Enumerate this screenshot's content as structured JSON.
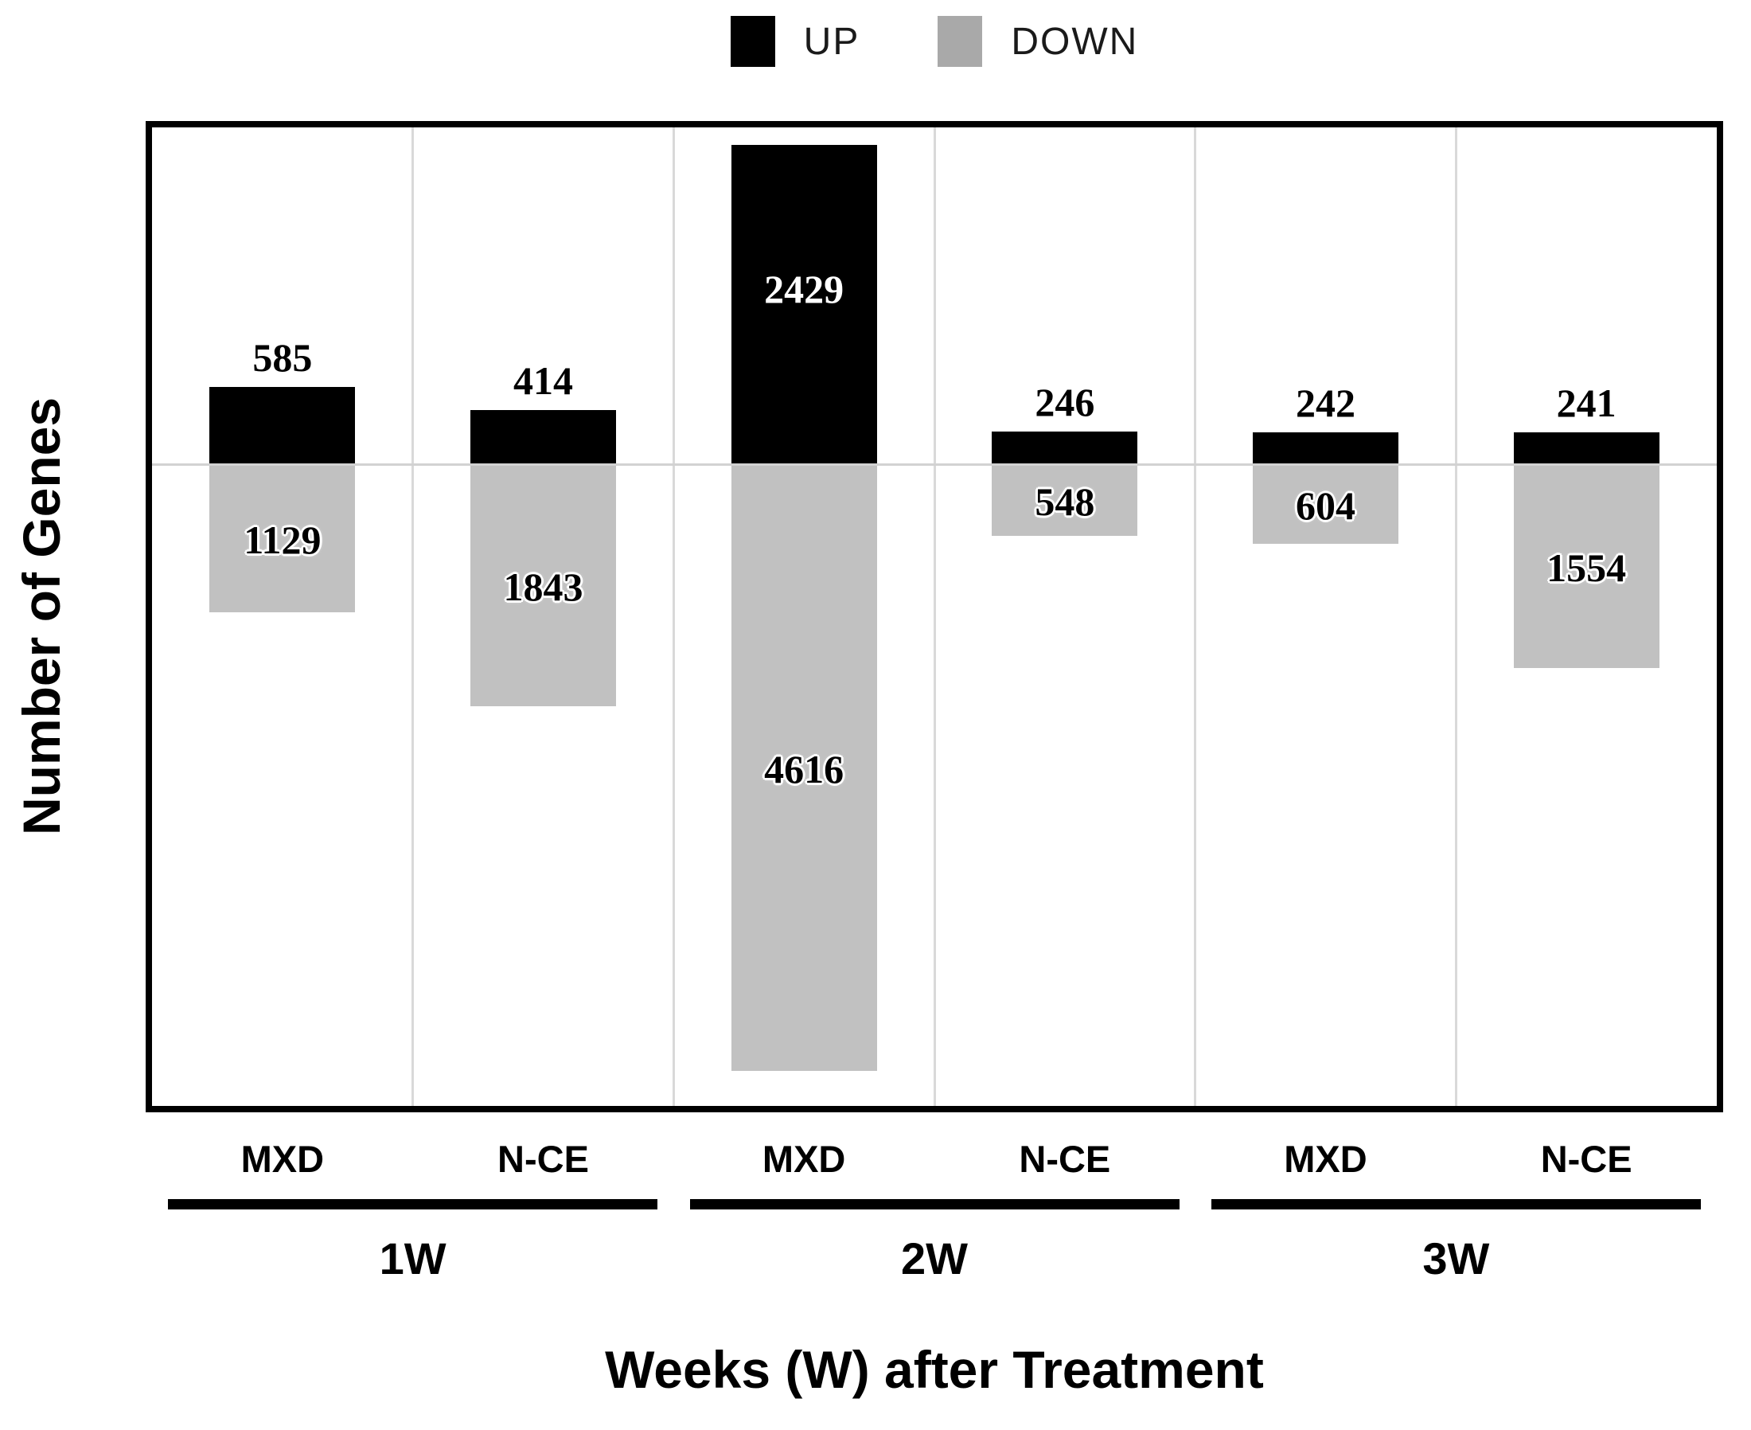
{
  "chart_data": {
    "type": "bar",
    "subtype": "diverging-stacked",
    "title": "",
    "ylabel": "Number of Genes",
    "xlabel": "Weeks (W) after Treatment",
    "legend_position": "top-center",
    "grid": "light vertical separators between bars, light horizontal zero line",
    "y_axis_ticks": "none",
    "legend_items": [
      {
        "label": "UP",
        "color": "#000000"
      },
      {
        "label": "DOWN",
        "color": "#a9a9a9"
      }
    ],
    "colors": {
      "up_bar": "#000000",
      "down_bar": "#c1c1c1",
      "gridline": "#d9d9d9",
      "zero_line": "#d2d2d2"
    },
    "groups": [
      {
        "label": "1W",
        "bars": [
          {
            "category": "MXD",
            "up": 585,
            "down": 1129
          },
          {
            "category": "N-CE",
            "up": 414,
            "down": 1843
          }
        ]
      },
      {
        "label": "2W",
        "bars": [
          {
            "category": "MXD",
            "up": 2429,
            "down": 4616
          },
          {
            "category": "N-CE",
            "up": 246,
            "down": 548
          }
        ]
      },
      {
        "label": "3W",
        "bars": [
          {
            "category": "MXD",
            "up": 242,
            "down": 604
          },
          {
            "category": "N-CE",
            "up": 241,
            "down": 1554
          }
        ]
      }
    ]
  }
}
